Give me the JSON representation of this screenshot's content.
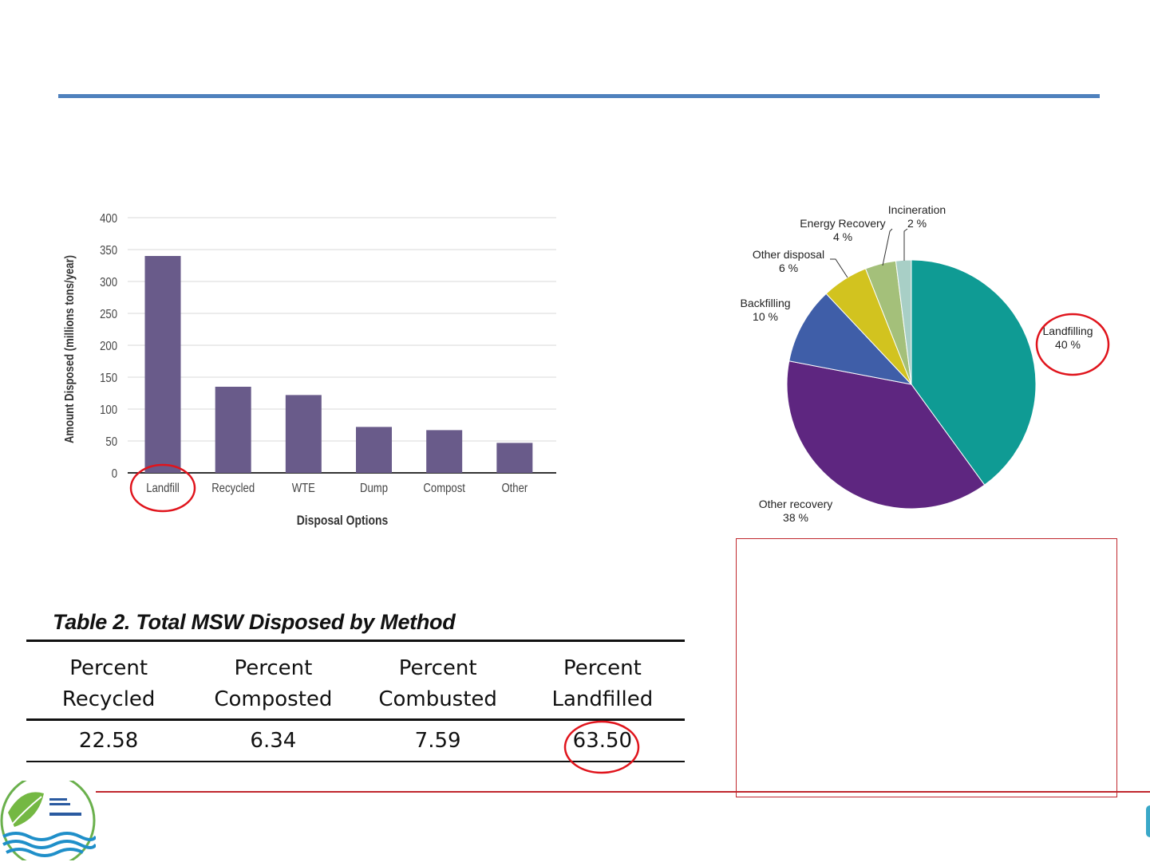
{
  "bar_chart_data": {
    "type": "bar",
    "xlabel": "Disposal Options",
    "ylabel": "Amount Disposed (millions tons/year)",
    "categories": [
      "Landfill",
      "Recycled",
      "WTE",
      "Dump",
      "Compost",
      "Other"
    ],
    "values": [
      340,
      135,
      122,
      72,
      67,
      47
    ],
    "yticks": [
      "0",
      "50",
      "100",
      "150",
      "200",
      "250",
      "300",
      "350",
      "400"
    ],
    "ylim": [
      0,
      400
    ],
    "grid": true,
    "bar_color": "#695b8a",
    "highlight_category": "Landfill"
  },
  "pie_chart_data": {
    "type": "pie",
    "slices": [
      {
        "label": "Landfilling",
        "pct_label": "40 %",
        "value": 40,
        "color": "#0f9b94"
      },
      {
        "label": "Other recovery",
        "pct_label": "38 %",
        "value": 38,
        "color": "#5e2680"
      },
      {
        "label": "Backfilling",
        "pct_label": "10 %",
        "value": 10,
        "color": "#3f5ea8"
      },
      {
        "label": "Other disposal",
        "pct_label": "6 %",
        "value": 6,
        "color": "#d2c31f"
      },
      {
        "label": "Energy Recovery",
        "pct_label": "4 %",
        "value": 4,
        "color": "#a4c07a"
      },
      {
        "label": "Incineration",
        "pct_label": "2 %",
        "value": 2,
        "color": "#a8cfc6"
      }
    ],
    "highlight_slice": "Landfilling"
  },
  "table": {
    "title": "Table 2. Total MSW Disposed by Method",
    "headers": [
      {
        "line1": "Percent",
        "line2": "Recycled"
      },
      {
        "line1": "Percent",
        "line2": "Composted"
      },
      {
        "line1": "Percent",
        "line2": "Combusted"
      },
      {
        "line1": "Percent",
        "line2": "Landfilled"
      }
    ],
    "values": [
      "22.58",
      "6.34",
      "7.59",
      "63.50"
    ],
    "highlight_value": "63.50"
  },
  "colors": {
    "accent_blue": "#4f81bd",
    "annotation_red": "#e0141c",
    "frame_red": "#c0272d"
  }
}
